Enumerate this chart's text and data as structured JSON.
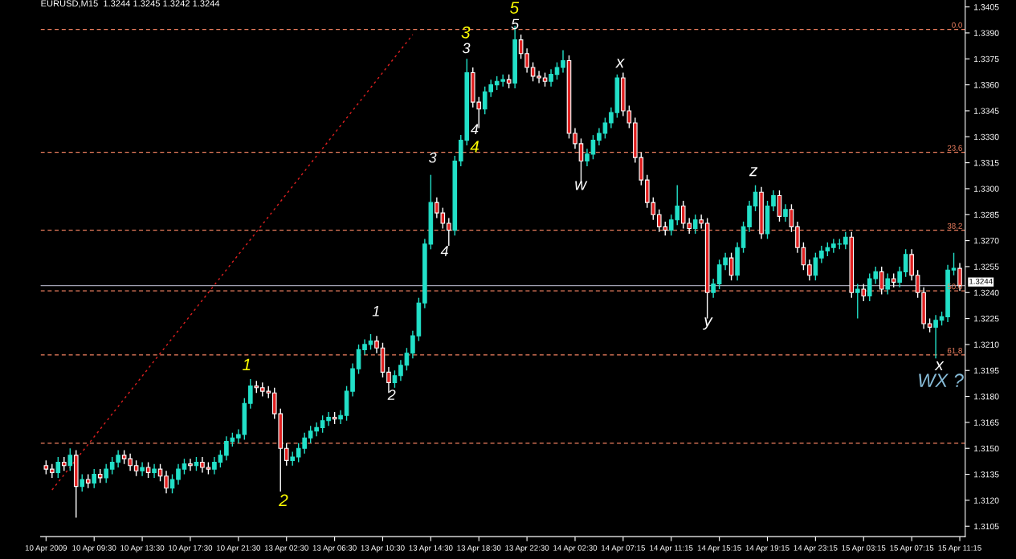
{
  "chart_data": {
    "type": "candlestick",
    "title": "EURUSD,M15  1.3244 1.3245 1.3242 1.3244",
    "categories": [
      "10 Apr 2009",
      null,
      null,
      null,
      null,
      null,
      null,
      null,
      "10 Apr 09:30",
      null,
      null,
      null,
      null,
      null,
      null,
      null,
      "10 Apr 13:30",
      null,
      null,
      null,
      null,
      null,
      null,
      null,
      "10 Apr 17:30",
      null,
      null,
      null,
      null,
      null,
      null,
      null,
      "10 Apr 21:30",
      null,
      null,
      null,
      null,
      null,
      null,
      null,
      "13 Apr 02:30",
      null,
      null,
      null,
      null,
      null,
      null,
      null,
      "13 Apr 06:30",
      null,
      null,
      null,
      null,
      null,
      null,
      null,
      "13 Apr 10:30",
      null,
      null,
      null,
      null,
      null,
      null,
      null,
      "13 Apr 14:30",
      null,
      null,
      null,
      null,
      null,
      null,
      null,
      "13 Apr 18:30",
      null,
      null,
      null,
      null,
      null,
      null,
      null,
      "13 Apr 22:30",
      null,
      null,
      null,
      null,
      null,
      null,
      null,
      "14 Apr 02:30",
      null,
      null,
      null,
      null,
      null,
      null,
      null,
      "14 Apr 07:15",
      null,
      null,
      null,
      null,
      null,
      null,
      null,
      "14 Apr 11:15",
      null,
      null,
      null,
      null,
      null,
      null,
      null,
      "14 Apr 15:15",
      null,
      null,
      null,
      null,
      null,
      null,
      null,
      "14 Apr 19:15",
      null,
      null,
      null,
      null,
      null,
      null,
      null,
      "14 Apr 23:15",
      null,
      null,
      null,
      null,
      null,
      null,
      null,
      "15 Apr 03:15",
      null,
      null,
      null,
      null,
      null,
      null,
      null,
      "15 Apr 07:15",
      null,
      null,
      null,
      null,
      null,
      null,
      null,
      "15 Apr 11:15"
    ],
    "ohlc": [
      [
        1.314,
        1.3143,
        1.3135,
        1.3138
      ],
      [
        1.3138,
        1.3141,
        1.3133,
        1.3136
      ],
      [
        1.3136,
        1.3145,
        1.3133,
        1.3142
      ],
      [
        1.3142,
        1.3145,
        1.3137,
        1.314
      ],
      [
        1.314,
        1.315,
        1.3137,
        1.3146
      ],
      [
        1.3146,
        1.3149,
        1.311,
        1.3128
      ],
      [
        1.3128,
        1.3135,
        1.3125,
        1.3132
      ],
      [
        1.3132,
        1.3135,
        1.3127,
        1.313
      ],
      [
        1.313,
        1.3138,
        1.3127,
        1.3135
      ],
      [
        1.3135,
        1.3138,
        1.313,
        1.3133
      ],
      [
        1.3133,
        1.3141,
        1.313,
        1.3138
      ],
      [
        1.3138,
        1.3145,
        1.3135,
        1.3142
      ],
      [
        1.3142,
        1.3149,
        1.3139,
        1.3146
      ],
      [
        1.3146,
        1.3149,
        1.3141,
        1.3144
      ],
      [
        1.3144,
        1.3147,
        1.3137,
        1.314
      ],
      [
        1.314,
        1.3143,
        1.3134,
        1.3137
      ],
      [
        1.3137,
        1.3142,
        1.3134,
        1.3139
      ],
      [
        1.3139,
        1.3142,
        1.3133,
        1.3136
      ],
      [
        1.3136,
        1.3141,
        1.3133,
        1.3138
      ],
      [
        1.3138,
        1.3141,
        1.3131,
        1.3134
      ],
      [
        1.3134,
        1.3137,
        1.3124,
        1.3127
      ],
      [
        1.3127,
        1.3135,
        1.3124,
        1.3132
      ],
      [
        1.3132,
        1.3141,
        1.3129,
        1.3138
      ],
      [
        1.3138,
        1.3144,
        1.3135,
        1.3141
      ],
      [
        1.3141,
        1.3144,
        1.3137,
        1.314
      ],
      [
        1.314,
        1.3145,
        1.3137,
        1.3142
      ],
      [
        1.3142,
        1.3145,
        1.3136,
        1.3139
      ],
      [
        1.3139,
        1.3142,
        1.3135,
        1.3138
      ],
      [
        1.3138,
        1.3145,
        1.3135,
        1.3142
      ],
      [
        1.3142,
        1.3149,
        1.3139,
        1.3146
      ],
      [
        1.3146,
        1.3157,
        1.3143,
        1.3154
      ],
      [
        1.3154,
        1.3159,
        1.3151,
        1.3156
      ],
      [
        1.3156,
        1.3161,
        1.3153,
        1.3158
      ],
      [
        1.3158,
        1.3179,
        1.3155,
        1.3176
      ],
      [
        1.3176,
        1.319,
        1.3173,
        1.3186
      ],
      [
        1.3186,
        1.3189,
        1.3182,
        1.3185
      ],
      [
        1.3185,
        1.3188,
        1.318,
        1.3183
      ],
      [
        1.3183,
        1.3186,
        1.3179,
        1.3182
      ],
      [
        1.3182,
        1.3185,
        1.3167,
        1.317
      ],
      [
        1.317,
        1.3173,
        1.3125,
        1.315
      ],
      [
        1.315,
        1.3153,
        1.314,
        1.3143
      ],
      [
        1.3143,
        1.3148,
        1.314,
        1.3145
      ],
      [
        1.3145,
        1.3153,
        1.3142,
        1.315
      ],
      [
        1.315,
        1.3159,
        1.3147,
        1.3156
      ],
      [
        1.3156,
        1.3163,
        1.3153,
        1.316
      ],
      [
        1.316,
        1.3165,
        1.3157,
        1.3162
      ],
      [
        1.3162,
        1.3169,
        1.3159,
        1.3166
      ],
      [
        1.3166,
        1.3171,
        1.3163,
        1.3168
      ],
      [
        1.3168,
        1.3171,
        1.3164,
        1.3167
      ],
      [
        1.3167,
        1.3172,
        1.3164,
        1.3169
      ],
      [
        1.3169,
        1.3186,
        1.3166,
        1.3183
      ],
      [
        1.3183,
        1.3199,
        1.318,
        1.3196
      ],
      [
        1.3196,
        1.321,
        1.3193,
        1.3207
      ],
      [
        1.3207,
        1.3213,
        1.3204,
        1.321
      ],
      [
        1.321,
        1.3216,
        1.3207,
        1.3212
      ],
      [
        1.3212,
        1.3215,
        1.3205,
        1.3208
      ],
      [
        1.3208,
        1.3211,
        1.3191,
        1.3194
      ],
      [
        1.3194,
        1.3197,
        1.3182,
        1.3188
      ],
      [
        1.3188,
        1.3195,
        1.3185,
        1.3192
      ],
      [
        1.3192,
        1.3201,
        1.3189,
        1.3198
      ],
      [
        1.3198,
        1.3208,
        1.3195,
        1.3205
      ],
      [
        1.3205,
        1.3218,
        1.3202,
        1.3215
      ],
      [
        1.3215,
        1.3237,
        1.3212,
        1.3234
      ],
      [
        1.3234,
        1.3271,
        1.3231,
        1.3268
      ],
      [
        1.3268,
        1.3308,
        1.3265,
        1.3292
      ],
      [
        1.3292,
        1.3295,
        1.3283,
        1.3286
      ],
      [
        1.3286,
        1.3289,
        1.3277,
        1.328
      ],
      [
        1.328,
        1.3283,
        1.3267,
        1.3276
      ],
      [
        1.3276,
        1.3319,
        1.3273,
        1.3316
      ],
      [
        1.3316,
        1.3331,
        1.3313,
        1.3328
      ],
      [
        1.3328,
        1.3375,
        1.3325,
        1.3367
      ],
      [
        1.3367,
        1.337,
        1.3347,
        1.335
      ],
      [
        1.335,
        1.3353,
        1.3335,
        1.3346
      ],
      [
        1.3346,
        1.3359,
        1.3343,
        1.3356
      ],
      [
        1.3356,
        1.3363,
        1.3353,
        1.336
      ],
      [
        1.336,
        1.3365,
        1.3357,
        1.3362
      ],
      [
        1.3362,
        1.3366,
        1.3359,
        1.3363
      ],
      [
        1.3363,
        1.3366,
        1.3358,
        1.3361
      ],
      [
        1.3361,
        1.3394,
        1.3358,
        1.3386
      ],
      [
        1.3386,
        1.3389,
        1.3375,
        1.3378
      ],
      [
        1.3378,
        1.3381,
        1.3367,
        1.337
      ],
      [
        1.337,
        1.3373,
        1.3362,
        1.3365
      ],
      [
        1.3365,
        1.3368,
        1.3361,
        1.3364
      ],
      [
        1.3364,
        1.3367,
        1.3359,
        1.3362
      ],
      [
        1.3362,
        1.3369,
        1.3359,
        1.3366
      ],
      [
        1.3366,
        1.3373,
        1.3363,
        1.337
      ],
      [
        1.337,
        1.338,
        1.3367,
        1.3374
      ],
      [
        1.3374,
        1.3377,
        1.3329,
        1.3332
      ],
      [
        1.3332,
        1.3335,
        1.3323,
        1.3326
      ],
      [
        1.3326,
        1.3329,
        1.3304,
        1.3316
      ],
      [
        1.3316,
        1.3323,
        1.3313,
        1.332
      ],
      [
        1.332,
        1.3331,
        1.3317,
        1.3328
      ],
      [
        1.3328,
        1.3335,
        1.3325,
        1.3332
      ],
      [
        1.3332,
        1.3341,
        1.3329,
        1.3338
      ],
      [
        1.3338,
        1.3347,
        1.3335,
        1.3344
      ],
      [
        1.3344,
        1.3366,
        1.3341,
        1.3364
      ],
      [
        1.3364,
        1.3367,
        1.3342,
        1.3345
      ],
      [
        1.3345,
        1.3348,
        1.3335,
        1.3338
      ],
      [
        1.3338,
        1.3341,
        1.3315,
        1.3318
      ],
      [
        1.3318,
        1.3321,
        1.3302,
        1.3305
      ],
      [
        1.3305,
        1.3308,
        1.3289,
        1.3292
      ],
      [
        1.3292,
        1.3295,
        1.3282,
        1.3285
      ],
      [
        1.3285,
        1.3288,
        1.3275,
        1.3278
      ],
      [
        1.3278,
        1.3281,
        1.3273,
        1.3276
      ],
      [
        1.3276,
        1.3285,
        1.3273,
        1.3282
      ],
      [
        1.3282,
        1.3302,
        1.3279,
        1.329
      ],
      [
        1.329,
        1.3293,
        1.3277,
        1.328
      ],
      [
        1.328,
        1.3283,
        1.3274,
        1.3277
      ],
      [
        1.3277,
        1.3285,
        1.3274,
        1.3282
      ],
      [
        1.3282,
        1.3285,
        1.3277,
        1.328
      ],
      [
        1.328,
        1.3283,
        1.3225,
        1.324
      ],
      [
        1.324,
        1.3248,
        1.3237,
        1.3245
      ],
      [
        1.3245,
        1.3259,
        1.3242,
        1.3256
      ],
      [
        1.3256,
        1.3263,
        1.3253,
        1.326
      ],
      [
        1.326,
        1.3263,
        1.3247,
        1.325
      ],
      [
        1.325,
        1.3269,
        1.3247,
        1.3266
      ],
      [
        1.3266,
        1.3281,
        1.3263,
        1.3278
      ],
      [
        1.3278,
        1.3293,
        1.3275,
        1.329
      ],
      [
        1.329,
        1.3302,
        1.3287,
        1.3298
      ],
      [
        1.3298,
        1.3301,
        1.3271,
        1.3274
      ],
      [
        1.3274,
        1.3293,
        1.3271,
        1.329
      ],
      [
        1.329,
        1.3299,
        1.3287,
        1.3296
      ],
      [
        1.3296,
        1.3299,
        1.3281,
        1.3284
      ],
      [
        1.3284,
        1.3291,
        1.3281,
        1.3288
      ],
      [
        1.3288,
        1.3291,
        1.3275,
        1.3278
      ],
      [
        1.3278,
        1.3281,
        1.3263,
        1.3266
      ],
      [
        1.3266,
        1.3269,
        1.3253,
        1.3256
      ],
      [
        1.3256,
        1.3259,
        1.3247,
        1.325
      ],
      [
        1.325,
        1.3263,
        1.3247,
        1.326
      ],
      [
        1.326,
        1.3267,
        1.3257,
        1.3264
      ],
      [
        1.3264,
        1.3269,
        1.3261,
        1.3266
      ],
      [
        1.3266,
        1.3271,
        1.3263,
        1.3268
      ],
      [
        1.3268,
        1.3271,
        1.3265,
        1.3268
      ],
      [
        1.3268,
        1.3275,
        1.3265,
        1.3272
      ],
      [
        1.3272,
        1.3275,
        1.3237,
        1.324
      ],
      [
        1.324,
        1.3245,
        1.3225,
        1.3242
      ],
      [
        1.3242,
        1.3245,
        1.3235,
        1.3238
      ],
      [
        1.3238,
        1.3251,
        1.3235,
        1.3248
      ],
      [
        1.3248,
        1.3255,
        1.3245,
        1.3252
      ],
      [
        1.3252,
        1.3255,
        1.3239,
        1.3242
      ],
      [
        1.3242,
        1.3251,
        1.3239,
        1.3248
      ],
      [
        1.3248,
        1.3251,
        1.3243,
        1.3246
      ],
      [
        1.3246,
        1.3255,
        1.3243,
        1.3252
      ],
      [
        1.3252,
        1.3265,
        1.3249,
        1.3262
      ],
      [
        1.3262,
        1.3265,
        1.3247,
        1.325
      ],
      [
        1.325,
        1.3253,
        1.3237,
        1.324
      ],
      [
        1.324,
        1.3243,
        1.3219,
        1.3222
      ],
      [
        1.3222,
        1.3225,
        1.3217,
        1.322
      ],
      [
        1.322,
        1.3227,
        1.3202,
        1.3224
      ],
      [
        1.3224,
        1.3229,
        1.3221,
        1.3226
      ],
      [
        1.3226,
        1.3256,
        1.3223,
        1.3253
      ],
      [
        1.3253,
        1.3263,
        1.325,
        1.3254
      ],
      [
        1.3254,
        1.3257,
        1.3241,
        1.3244
      ]
    ],
    "series": [
      {
        "type": "line",
        "values": [
          null,
          1.3126,
          null,
          null,
          null,
          null,
          null,
          null,
          null,
          null,
          null,
          null,
          null,
          null,
          null,
          null,
          null,
          null,
          null,
          null,
          null,
          null,
          null,
          null,
          null,
          null,
          null,
          null,
          null,
          null,
          null,
          null,
          null,
          null,
          null,
          null,
          null,
          null,
          null,
          null,
          null,
          null,
          null,
          null,
          null,
          null,
          null,
          null,
          null,
          null,
          null,
          null,
          null,
          null,
          null,
          null,
          null,
          null,
          null,
          null,
          null,
          1.3389,
          null,
          null,
          null,
          null,
          null,
          null,
          null,
          null,
          null,
          null,
          null,
          null,
          null,
          null,
          null,
          null,
          null,
          null,
          null,
          null,
          null,
          null,
          null,
          null,
          null,
          null,
          null,
          null,
          null,
          null,
          null,
          null,
          null,
          null,
          null,
          null,
          null,
          null,
          null,
          null,
          null,
          null,
          null,
          null,
          null,
          null,
          null,
          null,
          null,
          null,
          null,
          null,
          null,
          null,
          null,
          null,
          null,
          null,
          null,
          null,
          null,
          null,
          null,
          null,
          null,
          null,
          null,
          null,
          null,
          null,
          null,
          null,
          null,
          null,
          null,
          null,
          null,
          null,
          null,
          null,
          null,
          null,
          null,
          null,
          null,
          null,
          null,
          null,
          null,
          null,
          null
        ],
        "color": "#e02020",
        "line_style": "dotted"
      }
    ],
    "ylim": [
      1.3099,
      1.3409
    ],
    "yticks": [
      1.3105,
      {
        "value": 1.312,
        "label": "1.3120"
      },
      1.3135,
      {
        "value": 1.315,
        "label": "1.3150"
      },
      1.3165,
      {
        "value": 1.318,
        "label": "1.3180"
      },
      1.3195,
      {
        "value": 1.321,
        "label": "1.3210"
      },
      1.3225,
      {
        "value": 1.324,
        "label": "1.3240"
      },
      1.3255,
      {
        "value": 1.327,
        "label": "1.3270"
      },
      1.3285,
      {
        "value": 1.33,
        "label": "1.3300"
      },
      1.3315,
      {
        "value": 1.333,
        "label": "1.3330"
      },
      1.3345,
      {
        "value": 1.336,
        "label": "1.3360"
      },
      1.3375,
      {
        "value": 1.339,
        "label": "1.3390"
      },
      1.3405
    ],
    "ref_lines": [
      {
        "axis": "y",
        "value": 1.3392,
        "color": "#f08060",
        "line_style": "dashed"
      },
      {
        "axis": "y",
        "value": 1.3321,
        "color": "#f08060",
        "line_style": "dashed"
      },
      {
        "axis": "y",
        "value": 1.3276,
        "color": "#f08060",
        "line_style": "dashed"
      },
      {
        "axis": "y",
        "value": 1.3241,
        "color": "#f08060",
        "line_style": "dashed"
      },
      {
        "axis": "y",
        "value": 1.3204,
        "color": "#f08060",
        "line_style": "dashed"
      },
      {
        "axis": "y",
        "value": 1.3153,
        "color": "#f08060",
        "line_style": "dashed"
      },
      {
        "axis": "y",
        "value": 1.3244,
        "label": "1.3244",
        "color": "#a0a0b0",
        "line_style": "solid"
      }
    ],
    "annotations": [
      "1",
      "2",
      "3",
      "5",
      "4",
      "1",
      "2",
      "3",
      "4",
      "3",
      "4",
      "5",
      "x",
      "w",
      "y",
      "z",
      "x",
      "WX ?",
      "0.0",
      "23.6",
      "38.2",
      "50.0",
      "61.8"
    ],
    "grid": false
  }
}
